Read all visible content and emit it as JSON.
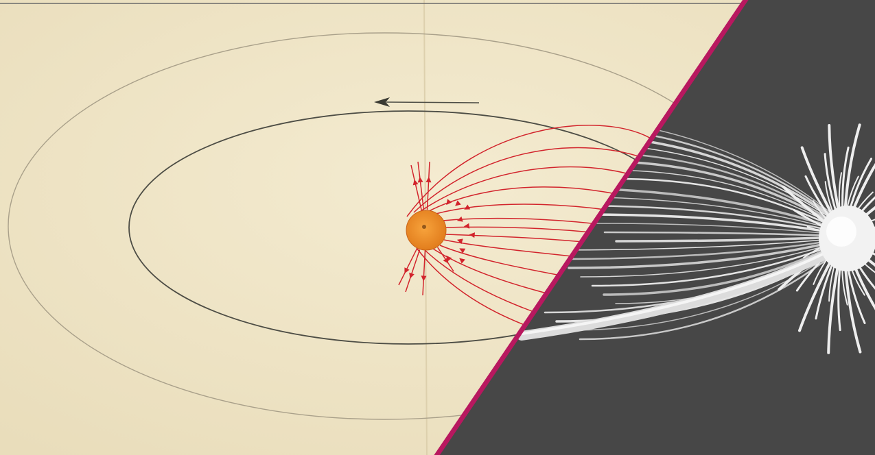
{
  "image": {
    "panels": [
      {
        "name": "sketch",
        "description_icon": "pencil-sketch-orbit-icon"
      },
      {
        "name": "photo",
        "description_icon": "white-fiber-sculpture-icon"
      }
    ],
    "colors": {
      "paper": "#f0e6c8",
      "pencil": "#4d4d45",
      "field_lines": "#d2242c",
      "sun": "#f0932b",
      "divider": "#b8185f",
      "photo_bg": "#474747",
      "fibers": "#eeeeee"
    }
  }
}
